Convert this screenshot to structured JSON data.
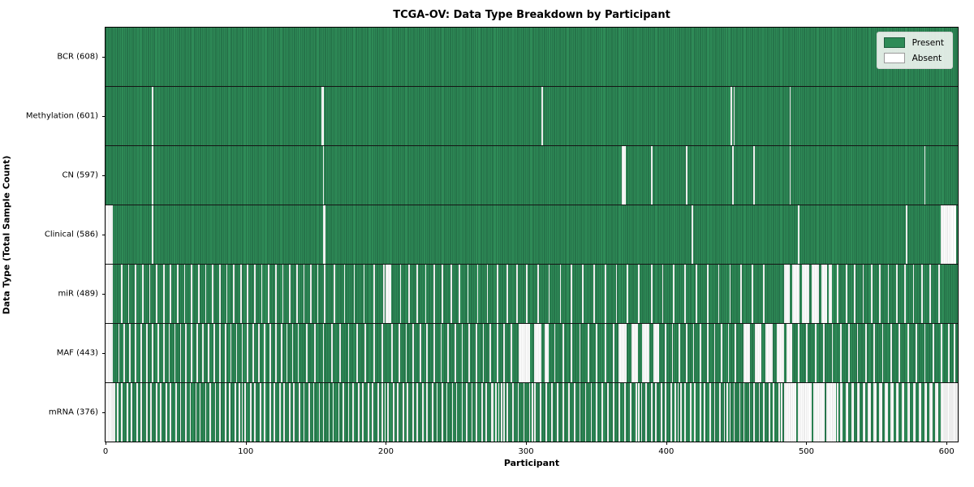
{
  "chart_data": {
    "type": "heatmap",
    "subtype": "presence-absence-barcode",
    "title": "TCGA-OV: Data Type Breakdown by Participant",
    "xlabel": "Participant",
    "ylabel": "Data Type (Total Sample Count)",
    "total_participants": 608,
    "xlim": [
      0,
      608
    ],
    "x_ticks": [
      0,
      100,
      200,
      300,
      400,
      500,
      600
    ],
    "grid": false,
    "legend": {
      "position": "upper-right",
      "items": [
        {
          "label": "Present",
          "color": "#2e8b57"
        },
        {
          "label": "Absent",
          "color": "#ffffff"
        }
      ]
    },
    "colors": {
      "present": "#2e8b57",
      "present_edge": "#1d5c3c",
      "absent": "#ffffff",
      "separator": "#141414"
    },
    "rows": [
      {
        "name": "BCR",
        "label": "BCR (608)",
        "present": 608,
        "absent": []
      },
      {
        "name": "Methylation",
        "label": "Methylation (601)",
        "present": 601,
        "absent": [
          33,
          [
            154,
            155
          ],
          311,
          446,
          448,
          488
        ]
      },
      {
        "name": "CN",
        "label": "CN (597)",
        "present": 597,
        "absent": [
          33,
          155,
          [
            368,
            370
          ],
          389,
          414,
          447,
          462,
          488,
          584
        ]
      },
      {
        "name": "Clinical",
        "label": "Clinical (586)",
        "present": 586,
        "absent": [
          [
            0,
            4
          ],
          33,
          [
            155,
            156
          ],
          418,
          494,
          571,
          [
            596,
            606
          ]
        ]
      },
      {
        "name": "miR",
        "label": "miR (489)",
        "present": 489,
        "absent": [
          [
            0,
            4
          ],
          11,
          16,
          21,
          26,
          31,
          36,
          41,
          46,
          51,
          56,
          61,
          66,
          71,
          76,
          81,
          86,
          91,
          96,
          101,
          106,
          111,
          116,
          121,
          126,
          131,
          136,
          141,
          146,
          151,
          156,
          163,
          170,
          177,
          184,
          191,
          198,
          [
            200,
            203
          ],
          210,
          216,
          222,
          228,
          234,
          240,
          246,
          252,
          258,
          265,
          272,
          279,
          286,
          293,
          300,
          308,
          316,
          324,
          332,
          340,
          348,
          356,
          364,
          372,
          380,
          389,
          397,
          405,
          413,
          421,
          429,
          437,
          445,
          453,
          461,
          469,
          [
            484,
            487
          ],
          [
            490,
            494
          ],
          [
            497,
            501
          ],
          [
            504,
            508
          ],
          [
            511,
            514
          ],
          [
            516,
            517
          ],
          522,
          528,
          534,
          540,
          546,
          552,
          558,
          564,
          570,
          576,
          582,
          588,
          594
        ]
      },
      {
        "name": "MAF",
        "label": "MAF (443)",
        "present": 443,
        "absent": [
          [
            0,
            4
          ],
          9,
          13,
          17,
          21,
          25,
          29,
          33,
          37,
          41,
          45,
          49,
          53,
          57,
          61,
          65,
          69,
          73,
          77,
          81,
          85,
          89,
          93,
          97,
          101,
          105,
          109,
          113,
          117,
          121,
          125,
          129,
          133,
          137,
          143,
          149,
          155,
          161,
          167,
          173,
          179,
          185,
          191,
          197,
          204,
          209,
          214,
          219,
          224,
          229,
          234,
          239,
          244,
          249,
          254,
          259,
          264,
          269,
          274,
          279,
          284,
          289,
          [
            295,
            302
          ],
          [
            306,
            310
          ],
          [
            313,
            315
          ],
          320,
          326,
          332,
          338,
          344,
          350,
          356,
          362,
          [
            366,
            371
          ],
          [
            375,
            379
          ],
          [
            383,
            387
          ],
          [
            391,
            394
          ],
          399,
          404,
          409,
          414,
          419,
          424,
          429,
          434,
          439,
          444,
          449,
          [
            455,
            459
          ],
          [
            463,
            467
          ],
          [
            471,
            475
          ],
          [
            479,
            483
          ],
          [
            486,
            489
          ],
          494,
          500,
          506,
          512,
          518,
          524,
          530,
          536,
          542,
          548,
          554,
          560,
          566,
          572,
          578,
          584,
          590,
          596,
          601,
          605
        ]
      },
      {
        "name": "mRNA",
        "label": "mRNA (376)",
        "present": 376,
        "absent": [
          [
            0,
            4
          ],
          5,
          6,
          8,
          11,
          15,
          18,
          22,
          25,
          29,
          32,
          36,
          39,
          43,
          46,
          50,
          53,
          57,
          60,
          64,
          67,
          71,
          74,
          78,
          81,
          85,
          88,
          92,
          95,
          97,
          99,
          103,
          106,
          110,
          113,
          117,
          120,
          124,
          127,
          131,
          134,
          138,
          141,
          145,
          148,
          152,
          155,
          159,
          162,
          166,
          169,
          173,
          176,
          180,
          183,
          187,
          190,
          194,
          197,
          199,
          201,
          205,
          208,
          212,
          215,
          219,
          222,
          226,
          229,
          233,
          236,
          240,
          243,
          247,
          250,
          254,
          257,
          261,
          264,
          268,
          271,
          275,
          276,
          278,
          280,
          282,
          284,
          286,
          290,
          294,
          298,
          302,
          304,
          306,
          310,
          314,
          318,
          322,
          326,
          330,
          334,
          338,
          342,
          346,
          350,
          354,
          358,
          362,
          366,
          370,
          374,
          378,
          380,
          382,
          385,
          389,
          392,
          396,
          399,
          403,
          406,
          408,
          410,
          413,
          417,
          420,
          424,
          427,
          431,
          434,
          438,
          441,
          443,
          445,
          448,
          452,
          455,
          459,
          462,
          466,
          469,
          473,
          476,
          480,
          482,
          [
            484,
            492
          ],
          [
            494,
            503
          ],
          [
            505,
            512
          ],
          [
            514,
            520
          ],
          522,
          [
            524,
            525
          ],
          [
            528,
            529
          ],
          [
            532,
            533
          ],
          [
            536,
            537
          ],
          [
            540,
            541
          ],
          [
            544,
            545
          ],
          [
            548,
            549
          ],
          [
            552,
            553
          ],
          [
            556,
            557
          ],
          [
            560,
            561
          ],
          [
            564,
            565
          ],
          [
            568,
            569
          ],
          [
            572,
            573
          ],
          [
            576,
            577
          ],
          [
            580,
            581
          ],
          [
            584,
            585
          ],
          [
            588,
            589
          ],
          [
            592,
            593
          ],
          [
            596,
            597
          ],
          598,
          599,
          [
            600,
            601
          ],
          602,
          603,
          [
            604,
            605
          ],
          606,
          607
        ]
      }
    ]
  }
}
